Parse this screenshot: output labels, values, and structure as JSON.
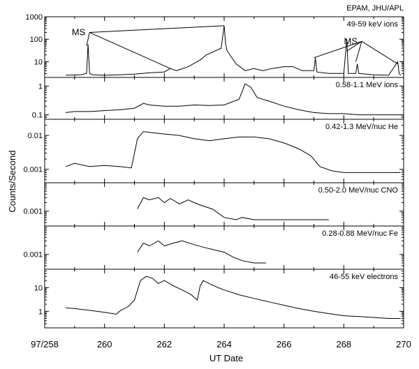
{
  "header": {
    "credit": "EPAM, JHU/APL"
  },
  "chart_data": {
    "type": "line",
    "xlabel": "UT Date",
    "ylabel": "Counts/Second",
    "x_scale": "day-of-year",
    "xlim": [
      258,
      270
    ],
    "x_ticks": [
      {
        "value": 258,
        "label": "97/258"
      },
      {
        "value": 260,
        "label": "260"
      },
      {
        "value": 262,
        "label": "262"
      },
      {
        "value": 264,
        "label": "264"
      },
      {
        "value": 266,
        "label": "266"
      },
      {
        "value": 268,
        "label": "268"
      },
      {
        "value": 270,
        "label": "270"
      }
    ],
    "panels": [
      {
        "name": "49-59 keV ions",
        "y_scale": "log",
        "ylim": [
          2,
          1000
        ],
        "y_ticks": [
          {
            "v": 10,
            "label": "10"
          },
          {
            "v": 100,
            "label": "100"
          },
          {
            "v": 1000,
            "label": "1000"
          }
        ],
        "annotations": [
          {
            "text": "MS",
            "x": 259.5,
            "y": 200,
            "targets": [
              [
                259.4,
                50
              ],
              [
                262.2,
                5
              ],
              [
                264.0,
                400
              ]
            ]
          },
          {
            "text": "MS",
            "x": 268.6,
            "y": 80,
            "targets": [
              [
                267.0,
                15
              ],
              [
                268.1,
                30
              ],
              [
                268.4,
                10
              ],
              [
                269.8,
                8
              ]
            ]
          }
        ],
        "series": [
          {
            "x": [
              258.7,
              259.2,
              259.4,
              259.45,
              259.5,
              259.55,
              259.6,
              260,
              260.5,
              261,
              261.5,
              262,
              262.2,
              262.4,
              262.8,
              263.2,
              263.4,
              263.7,
              263.9,
              264.0,
              264.05,
              264.1,
              264.4,
              264.7,
              265,
              265.3,
              265.6,
              266,
              266.3,
              266.6,
              267,
              267.05,
              267.1,
              267.5,
              268,
              268.1,
              268.15,
              268.2,
              268.4,
              268.45,
              268.5,
              269,
              269.5,
              269.8,
              269.85,
              269.9
            ],
            "y": [
              2.5,
              2.6,
              3,
              60,
              3,
              2.8,
              2.6,
              2.5,
              2.6,
              2.8,
              3.2,
              3.5,
              5,
              4,
              6,
              12,
              20,
              30,
              40,
              400,
              60,
              30,
              8,
              4,
              5,
              4,
              5,
              6,
              6,
              4,
              4,
              15,
              3.5,
              3,
              3,
              100,
              3,
              3,
              3,
              8,
              3,
              2.6,
              2.5,
              10,
              3,
              2.5
            ]
          }
        ]
      },
      {
        "name": "0.58-1.1 MeV ions",
        "y_scale": "log",
        "ylim": [
          0.07,
          2
        ],
        "y_ticks": [
          {
            "v": 0.1,
            "label": "0.1"
          },
          {
            "v": 1,
            "label": "1"
          }
        ],
        "series": [
          {
            "x": [
              258.7,
              259,
              259.5,
              260,
              260.5,
              261,
              261.3,
              261.5,
              262,
              262.5,
              263,
              263.5,
              264,
              264.5,
              264.7,
              264.9,
              265.1,
              265.5,
              266,
              266.5,
              267,
              267.5,
              268,
              268.5,
              269,
              269.5,
              269.9
            ],
            "y": [
              0.12,
              0.13,
              0.13,
              0.14,
              0.15,
              0.17,
              0.25,
              0.22,
              0.2,
              0.2,
              0.22,
              0.21,
              0.22,
              0.35,
              1.2,
              0.9,
              0.4,
              0.3,
              0.2,
              0.15,
              0.12,
              0.11,
              0.11,
              0.1,
              0.1,
              0.1,
              0.1
            ]
          }
        ]
      },
      {
        "name": "0.42-1.3 MeV/nuc He",
        "y_scale": "log",
        "ylim": [
          0.0004,
          0.03
        ],
        "y_ticks": [
          {
            "v": 0.001,
            "label": "0.001"
          },
          {
            "v": 0.01,
            "label": "0.01"
          }
        ],
        "series": [
          {
            "x": [
              258.7,
              259,
              259.5,
              260,
              260.5,
              260.9,
              261.1,
              261.3,
              261.6,
              262,
              262.5,
              263,
              263.5,
              264,
              264.5,
              265,
              265.5,
              266,
              266.5,
              266.9,
              267.2,
              267.6,
              268,
              268.5,
              269,
              269.5,
              269.9
            ],
            "y": [
              0.0012,
              0.0015,
              0.0012,
              0.0013,
              0.0012,
              0.0011,
              0.008,
              0.013,
              0.012,
              0.011,
              0.01,
              0.008,
              0.007,
              0.008,
              0.009,
              0.009,
              0.008,
              0.006,
              0.004,
              0.0025,
              0.0012,
              0.0009,
              0.0008,
              0.0008,
              0.0008,
              0.0008,
              0.0008
            ]
          }
        ]
      },
      {
        "name": "0.50-2.0 MeV/nuc CNO",
        "y_scale": "log",
        "ylim": [
          0.0003,
          0.01
        ],
        "y_ticks": [
          {
            "v": 0.001,
            "label": "0.001"
          }
        ],
        "series": [
          {
            "x": [
              261.1,
              261.3,
              261.5,
              261.8,
              262,
              262.2,
              262.5,
              262.8,
              263,
              263.3,
              263.6,
              264,
              264.4,
              264.6,
              265,
              265.5,
              266,
              266.5,
              267,
              267.5
            ],
            "y": [
              0.0012,
              0.003,
              0.0025,
              0.003,
              0.002,
              0.0028,
              0.0018,
              0.0025,
              0.002,
              0.0015,
              0.0012,
              0.0006,
              0.0005,
              0.0006,
              0.0005,
              0.0005,
              0.0005,
              0.0005,
              0.0005,
              0.0005
            ]
          }
        ]
      },
      {
        "name": "0.28-0.88 MeV/nuc Fe",
        "y_scale": "log",
        "ylim": [
          0.0003,
          0.01
        ],
        "y_ticks": [
          {
            "v": 0.001,
            "label": "0.001"
          }
        ],
        "series": [
          {
            "x": [
              261.1,
              261.3,
              261.5,
              261.8,
              262,
              262.3,
              262.6,
              263,
              263.3,
              263.6,
              264,
              264.3,
              264.6,
              265,
              265.4
            ],
            "y": [
              0.0012,
              0.0025,
              0.002,
              0.003,
              0.002,
              0.0025,
              0.003,
              0.0022,
              0.0018,
              0.0015,
              0.0012,
              0.0008,
              0.0006,
              0.0005,
              0.0005
            ]
          }
        ]
      },
      {
        "name": "46-55 keV electrons",
        "y_scale": "log",
        "ylim": [
          0.2,
          60
        ],
        "y_ticks": [
          {
            "v": 1,
            "label": "1"
          },
          {
            "v": 10,
            "label": "10"
          }
        ],
        "series": [
          {
            "x": [
              258.7,
              259,
              259.5,
              260,
              260.4,
              260.5,
              260.6,
              260.8,
              261.0,
              261.2,
              261.4,
              261.6,
              261.8,
              262,
              262.3,
              262.6,
              262.9,
              263.1,
              263.2,
              263.3,
              263.5,
              263.8,
              264,
              264.5,
              265,
              265.5,
              266,
              266.5,
              267,
              267.5,
              268,
              268.5,
              269,
              269.5,
              269.9
            ],
            "y": [
              1.4,
              1.3,
              1.1,
              0.9,
              0.75,
              1.0,
              1.2,
              1.6,
              3,
              20,
              30,
              25,
              15,
              20,
              12,
              8,
              5,
              3,
              12,
              20,
              15,
              10,
              8,
              5,
              3.5,
              2.5,
              1.8,
              1.3,
              1.0,
              0.8,
              0.65,
              0.6,
              0.55,
              0.5,
              0.5
            ]
          }
        ]
      }
    ]
  }
}
